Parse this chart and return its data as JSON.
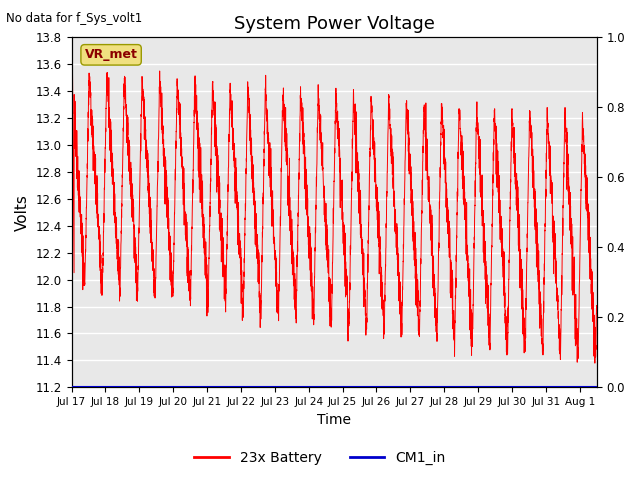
{
  "title": "System Power Voltage",
  "top_left_text": "No data for f_Sys_volt1",
  "xlabel": "Time",
  "ylabel": "Volts",
  "ylim_left": [
    11.2,
    13.8
  ],
  "ylim_right": [
    0.0,
    1.0
  ],
  "yticks_left": [
    11.2,
    11.4,
    11.6,
    11.8,
    12.0,
    12.2,
    12.4,
    12.6,
    12.8,
    13.0,
    13.2,
    13.4,
    13.6,
    13.8
  ],
  "yticks_right": [
    0.0,
    0.2,
    0.4,
    0.6,
    0.8,
    1.0
  ],
  "xtick_labels": [
    "Jul 17",
    "Jul 18",
    "Jul 19",
    "Jul 20",
    "Jul 21",
    "Jul 22",
    "Jul 23",
    "Jul 24",
    "Jul 25",
    "Jul 26",
    "Jul 27",
    "Jul 28",
    "Jul 29",
    "Jul 30",
    "Jul 31",
    "Aug 1"
  ],
  "bg_color": "#e8e8e8",
  "line_color_battery": "#ff0000",
  "line_color_cm1": "#0000cc",
  "vr_met_box_color": "#f0e080",
  "vr_met_text_color": "#8b0000",
  "legend_labels": [
    "23x Battery",
    "CM1_in"
  ],
  "annotation_vr_met": "VR_met",
  "title_fontsize": 13,
  "figsize": [
    6.4,
    4.8
  ],
  "dpi": 100
}
